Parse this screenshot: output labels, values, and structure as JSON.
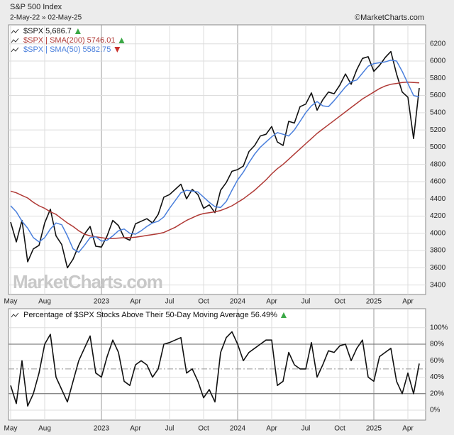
{
  "chart_data": [
    {
      "type": "line",
      "title": "S&P 500 Index",
      "subtitle": "2-May-22 » 02-May-25",
      "source": "©MarketCharts.com",
      "watermark": "MarketCharts.com",
      "categories": [
        "May",
        null,
        null,
        null,
        null,
        null,
        "Aug",
        null,
        null,
        null,
        null,
        null,
        null,
        null,
        null,
        null,
        "2023",
        null,
        null,
        null,
        null,
        null,
        "Apr",
        null,
        null,
        null,
        null,
        null,
        "Jul",
        null,
        null,
        null,
        null,
        null,
        "Oct",
        null,
        null,
        null,
        null,
        null,
        "2024",
        null,
        null,
        null,
        null,
        null,
        "Apr",
        null,
        null,
        null,
        null,
        null,
        "Jul",
        null,
        null,
        null,
        null,
        null,
        "Oct",
        null,
        null,
        null,
        null,
        null,
        "2025",
        null,
        null,
        null,
        null,
        null,
        "Apr",
        null,
        null
      ],
      "ylim": [
        3290,
        6420
      ],
      "yticks": [
        3400,
        3600,
        3800,
        4000,
        4200,
        4400,
        4600,
        4800,
        5000,
        5200,
        5400,
        5600,
        5800,
        6000,
        6200
      ],
      "grid": true,
      "legend": "upper left",
      "series": [
        {
          "name": "$SPX 5,686.7",
          "color": "#111111",
          "trend": "up",
          "values": [
            4130,
            3900,
            4150,
            3670,
            3820,
            3860,
            4120,
            4280,
            3970,
            3870,
            3600,
            3700,
            3860,
            3990,
            4080,
            3850,
            3840,
            3970,
            4150,
            4090,
            3950,
            3920,
            4110,
            4140,
            4170,
            4120,
            4220,
            4420,
            4450,
            4510,
            4570,
            4400,
            4510,
            4450,
            4290,
            4330,
            4240,
            4500,
            4590,
            4720,
            4740,
            4780,
            4950,
            5020,
            5130,
            5150,
            5240,
            5060,
            5020,
            5300,
            5280,
            5470,
            5500,
            5630,
            5430,
            5550,
            5640,
            5620,
            5720,
            5850,
            5730,
            5900,
            6030,
            6050,
            5880,
            5950,
            6040,
            6110,
            5850,
            5640,
            5580,
            5100,
            5686.7
          ]
        },
        {
          "name": "$SPX | SMA(200) 5746.01",
          "color": "#b03a36",
          "trend": "up",
          "values": [
            4490,
            4470,
            4440,
            4410,
            4360,
            4320,
            4290,
            4250,
            4220,
            4170,
            4120,
            4080,
            4030,
            3990,
            3970,
            3960,
            3950,
            3940,
            3940,
            3945,
            3950,
            3950,
            3955,
            3965,
            3975,
            3985,
            3995,
            4010,
            4040,
            4070,
            4110,
            4150,
            4180,
            4210,
            4230,
            4240,
            4250,
            4265,
            4290,
            4320,
            4360,
            4400,
            4450,
            4500,
            4560,
            4620,
            4690,
            4750,
            4800,
            4860,
            4920,
            4980,
            5040,
            5100,
            5160,
            5210,
            5260,
            5310,
            5360,
            5410,
            5460,
            5510,
            5560,
            5600,
            5640,
            5680,
            5710,
            5730,
            5740,
            5750,
            5755,
            5750,
            5746.01
          ]
        },
        {
          "name": "$SPX | SMA(50) 5582.75",
          "color": "#4a7fdc",
          "trend": "down",
          "values": [
            4320,
            4250,
            4140,
            4060,
            3950,
            3900,
            3950,
            4050,
            4120,
            4100,
            3970,
            3820,
            3780,
            3860,
            3950,
            3960,
            3910,
            3920,
            3970,
            4030,
            4050,
            4000,
            3990,
            4030,
            4080,
            4120,
            4140,
            4190,
            4290,
            4380,
            4470,
            4500,
            4490,
            4480,
            4420,
            4360,
            4310,
            4300,
            4370,
            4500,
            4620,
            4710,
            4820,
            4920,
            5000,
            5060,
            5120,
            5170,
            5150,
            5130,
            5200,
            5300,
            5400,
            5480,
            5530,
            5480,
            5470,
            5540,
            5620,
            5700,
            5760,
            5780,
            5860,
            5940,
            5970,
            5980,
            5990,
            6010,
            6000,
            5880,
            5740,
            5600,
            5582.75
          ]
        }
      ]
    },
    {
      "type": "line",
      "categories": [
        "May",
        null,
        null,
        null,
        null,
        null,
        "Aug",
        null,
        null,
        null,
        null,
        null,
        null,
        null,
        null,
        null,
        "2023",
        null,
        null,
        null,
        null,
        null,
        "Apr",
        null,
        null,
        null,
        null,
        null,
        "Jul",
        null,
        null,
        null,
        null,
        null,
        "Oct",
        null,
        null,
        null,
        null,
        null,
        "2024",
        null,
        null,
        null,
        null,
        null,
        "Apr",
        null,
        null,
        null,
        null,
        null,
        "Jul",
        null,
        null,
        null,
        null,
        null,
        "Oct",
        null,
        null,
        null,
        null,
        null,
        "2025",
        null,
        null,
        null,
        null,
        null,
        "Apr",
        null,
        null
      ],
      "ylim": [
        -12,
        123
      ],
      "yticks": [
        {
          "value": 0,
          "label": "0%"
        },
        {
          "value": 20,
          "label": "20%"
        },
        {
          "value": 40,
          "label": "40%"
        },
        {
          "value": 60,
          "label": "60%"
        },
        {
          "value": 80,
          "label": "80%"
        },
        {
          "value": 100,
          "label": "100%"
        }
      ],
      "grid": true,
      "legend": "upper left",
      "reference_lines": [
        {
          "value": 80,
          "style": "solid"
        },
        {
          "value": 50,
          "style": "dashdot"
        },
        {
          "value": 20,
          "style": "solid"
        }
      ],
      "series": [
        {
          "name": "Percentage of $SPX Stocks Above Their 50-Day Moving Average 56.49%",
          "color": "#111111",
          "trend": "up",
          "values": [
            30,
            8,
            60,
            5,
            20,
            45,
            80,
            92,
            40,
            25,
            10,
            35,
            60,
            75,
            90,
            45,
            40,
            65,
            85,
            70,
            35,
            30,
            55,
            60,
            55,
            40,
            50,
            80,
            82,
            85,
            88,
            45,
            50,
            35,
            15,
            25,
            10,
            70,
            88,
            95,
            80,
            60,
            70,
            75,
            80,
            85,
            85,
            30,
            35,
            70,
            55,
            50,
            50,
            82,
            40,
            55,
            72,
            70,
            78,
            80,
            60,
            75,
            85,
            40,
            35,
            65,
            70,
            75,
            35,
            20,
            45,
            20,
            56.49
          ]
        }
      ]
    }
  ]
}
